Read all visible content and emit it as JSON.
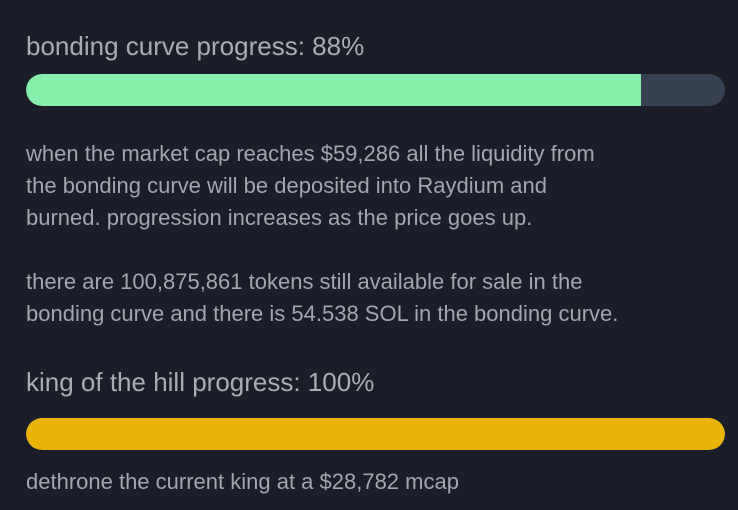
{
  "bonding_curve": {
    "title": "bonding curve progress: 88%",
    "progress": 88,
    "color": "#86efac",
    "paragraphs": [
      [
        "when the market cap reaches $59,286 all the liquidity from",
        "the bonding curve will be deposited into Raydium and",
        "burned. progression increases as the price goes up."
      ],
      [
        "there are 100,875,861 tokens still available for sale in the",
        "bonding curve and there is 54.538 SOL in the bonding curve."
      ]
    ]
  },
  "king_of_the_hill": {
    "title": "king of the hill progress: 100%",
    "progress": 100,
    "color": "#eab308",
    "text": "dethrone the current king at a $28,782 mcap"
  }
}
